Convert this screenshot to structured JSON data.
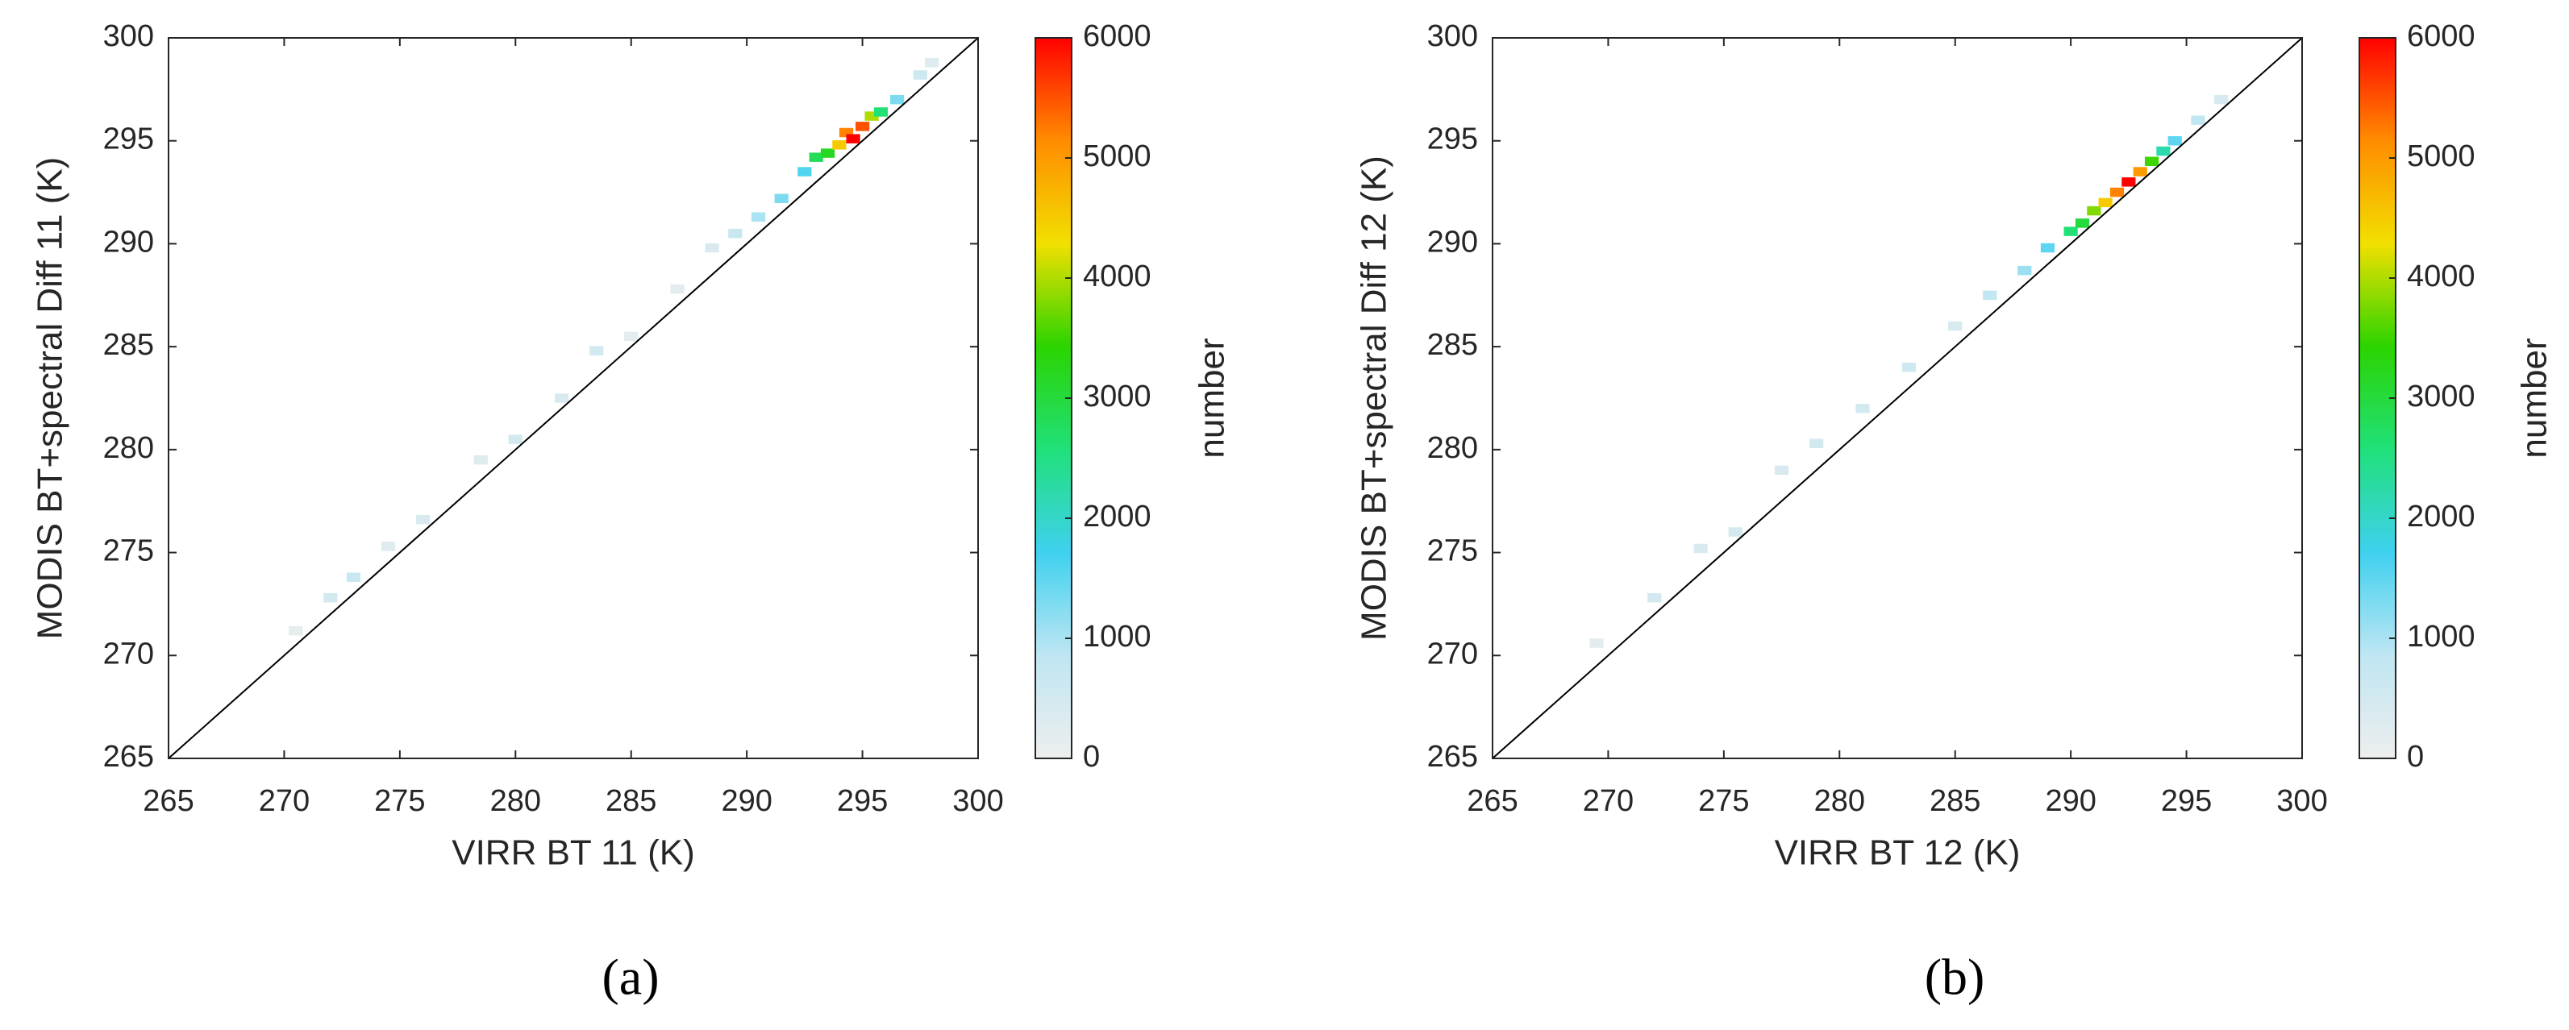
{
  "chart_data": [
    {
      "type": "heatmap",
      "panel_label": "(a)",
      "xlabel": "VIRR BT 11 (K)",
      "ylabel": "MODIS BT+spectral Diff 11 (K)",
      "xlim": [
        265,
        300
      ],
      "ylim": [
        265,
        300
      ],
      "xticks": [
        265,
        270,
        275,
        280,
        285,
        290,
        295,
        300
      ],
      "yticks": [
        265,
        270,
        275,
        280,
        285,
        290,
        295,
        300
      ],
      "cells": {
        "x": [
          270.5,
          272,
          273,
          274.5,
          276,
          278.5,
          280,
          282,
          283.5,
          285,
          287,
          288.5,
          289.5,
          290.5,
          291.5,
          292.5,
          293,
          293.5,
          294,
          294.3,
          294.6,
          295,
          295.4,
          295.8,
          296.5,
          297.5,
          298
        ],
        "y": [
          271.2,
          272.8,
          273.8,
          275.3,
          276.6,
          279.5,
          280.5,
          282.5,
          284.8,
          285.5,
          287.8,
          289.8,
          290.5,
          291.3,
          292.2,
          293.5,
          294.2,
          294.4,
          294.8,
          295.4,
          295.1,
          295.7,
          296.2,
          296.4,
          297,
          298.2,
          298.8
        ],
        "values": [
          150,
          500,
          700,
          300,
          400,
          300,
          500,
          400,
          500,
          200,
          200,
          400,
          700,
          1000,
          1300,
          1600,
          2800,
          3200,
          4500,
          5200,
          6000,
          5500,
          4000,
          2600,
          1300,
          600,
          300
        ]
      },
      "colorbar": {
        "label": "number",
        "lim": [
          0,
          6000
        ],
        "ticks": [
          0,
          1000,
          2000,
          3000,
          4000,
          5000,
          6000
        ],
        "colors": [
          "#eeeeee",
          "#bfe6f2",
          "#3fd1f0",
          "#20e07a",
          "#2bd400",
          "#f2e000",
          "#ff8c00",
          "#ff0000"
        ]
      }
    },
    {
      "type": "heatmap",
      "panel_label": "(b)",
      "xlabel": "VIRR BT 12 (K)",
      "ylabel": "MODIS BT+spectral Diff 12 (K)",
      "xlim": [
        265,
        300
      ],
      "ylim": [
        265,
        300
      ],
      "xticks": [
        265,
        270,
        275,
        280,
        285,
        290,
        295,
        300
      ],
      "yticks": [
        265,
        270,
        275,
        280,
        285,
        290,
        295,
        300
      ],
      "cells": {
        "x": [
          269.5,
          272,
          274,
          275.5,
          277.5,
          279,
          281,
          283,
          285,
          286.5,
          288,
          289,
          290,
          290.5,
          291,
          291.5,
          292,
          292.5,
          293,
          293.5,
          294,
          294.5,
          295.5,
          296.5
        ],
        "y": [
          270.6,
          272.8,
          275.2,
          276,
          279,
          280.3,
          282,
          284,
          286,
          287.5,
          288.7,
          289.8,
          290.6,
          291,
          291.6,
          292,
          292.5,
          293,
          293.5,
          294,
          294.5,
          295,
          296,
          297
        ],
        "values": [
          200,
          500,
          400,
          500,
          400,
          500,
          500,
          600,
          400,
          800,
          1100,
          1500,
          2600,
          3000,
          3800,
          4500,
          5200,
          6000,
          5000,
          3500,
          2200,
          1500,
          800,
          400
        ]
      },
      "colorbar": {
        "label": "number",
        "lim": [
          0,
          6000
        ],
        "ticks": [
          0,
          1000,
          2000,
          3000,
          4000,
          5000,
          6000
        ],
        "colors": [
          "#eeeeee",
          "#bfe6f2",
          "#3fd1f0",
          "#20e07a",
          "#2bd400",
          "#f2e000",
          "#ff8c00",
          "#ff0000"
        ]
      }
    }
  ]
}
